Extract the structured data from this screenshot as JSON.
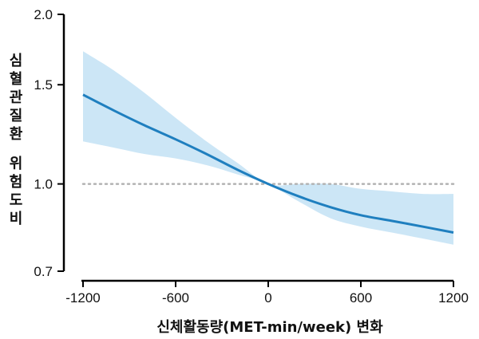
{
  "chart_data": {
    "type": "line",
    "xlabel": "신체활동량(MET-min/week) 변화",
    "ylabel": "심혈관질환 위험도비",
    "ylabel_lines": [
      "심",
      "혈",
      "관",
      "질",
      "환",
      "",
      "위",
      "험",
      "도",
      "비"
    ],
    "xlim": [
      -1200,
      1200
    ],
    "ylim": [
      0.7,
      2.0
    ],
    "y_scale": "log",
    "x_ticks": [
      -1200,
      -600,
      0,
      600,
      1200
    ],
    "x_tick_labels": [
      "-1200",
      "-600",
      "0",
      "600",
      "1200"
    ],
    "y_ticks": [
      0.7,
      1.0,
      1.5,
      2.0
    ],
    "y_tick_labels": [
      "0.7",
      "1.0",
      "1.5",
      "2.0"
    ],
    "reference_line": {
      "y": 1.0,
      "style": "dotted",
      "color": "#b3b3b3"
    },
    "series": [
      {
        "x": [
          -1200,
          -1000,
          -800,
          -600,
          -400,
          -200,
          0,
          200,
          400,
          600,
          800,
          1000,
          1200
        ],
        "y": [
          1.44,
          1.35,
          1.27,
          1.2,
          1.13,
          1.06,
          1.0,
          0.95,
          0.91,
          0.88,
          0.86,
          0.84,
          0.82
        ],
        "lower": [
          1.19,
          1.16,
          1.13,
          1.11,
          1.08,
          1.04,
          1.0,
          0.93,
          0.87,
          0.84,
          0.82,
          0.8,
          0.78
        ],
        "upper": [
          1.72,
          1.59,
          1.45,
          1.31,
          1.19,
          1.09,
          1.0,
          1.0,
          1.0,
          0.98,
          0.97,
          0.96,
          0.96
        ]
      }
    ],
    "colors": {
      "line": "#1f7fbf",
      "band": "#cce6f6",
      "axis": "#000000",
      "reference": "#b3b3b3"
    },
    "grid": false
  }
}
